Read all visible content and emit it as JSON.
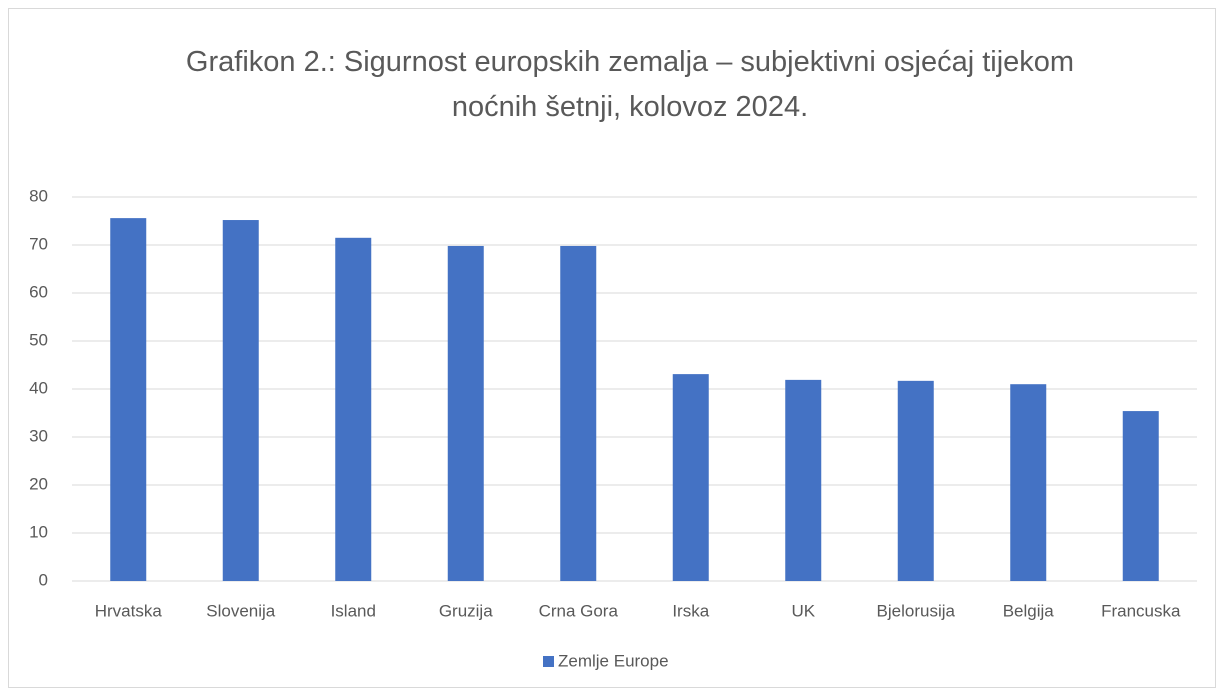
{
  "chart_data": {
    "type": "bar",
    "title": "Grafikon 2.: Sigurnost europskih zemalja – subjektivni osjećaj tijekom noćnih šetnji, kolovoz 2024.",
    "categories": [
      "Hrvatska",
      "Slovenija",
      "Island",
      "Gruzija",
      "Crna Gora",
      "Irska",
      "UK",
      "Bjelorusija",
      "Belgija",
      "Francuska"
    ],
    "series": [
      {
        "name": "Zemlje Europe",
        "color": "#4472c4",
        "values": [
          75.6,
          75.2,
          71.5,
          69.8,
          69.8,
          43.1,
          41.9,
          41.7,
          41.0,
          35.4
        ]
      }
    ],
    "ylim": [
      0,
      80
    ],
    "yticks": [
      0,
      10,
      20,
      30,
      40,
      50,
      60,
      70,
      80
    ],
    "grid": true,
    "legend": "bottom"
  }
}
